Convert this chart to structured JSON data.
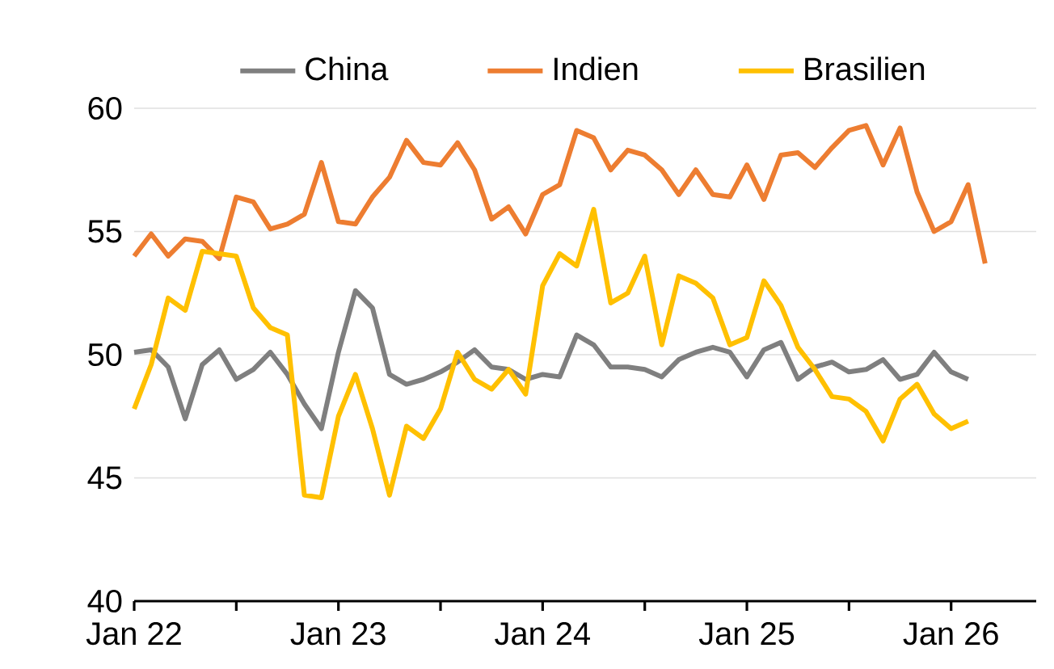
{
  "chart_data": {
    "type": "line",
    "x": [
      "2022-01",
      "2022-02",
      "2022-03",
      "2022-04",
      "2022-05",
      "2022-06",
      "2022-07",
      "2022-08",
      "2022-09",
      "2022-10",
      "2022-11",
      "2022-12",
      "2023-01",
      "2023-02",
      "2023-03",
      "2023-04",
      "2023-05",
      "2023-06",
      "2023-07",
      "2023-08",
      "2023-09",
      "2023-10",
      "2023-11",
      "2023-12",
      "2024-01",
      "2024-02",
      "2024-03",
      "2024-04",
      "2024-05",
      "2024-06",
      "2024-07",
      "2024-08",
      "2024-09",
      "2024-10",
      "2024-11",
      "2024-12",
      "2025-01",
      "2025-02",
      "2025-03",
      "2025-04",
      "2025-05",
      "2025-06",
      "2025-07",
      "2025-08",
      "2025-09",
      "2025-10",
      "2025-11",
      "2025-12",
      "2026-01",
      "2026-02",
      "2026-03"
    ],
    "series": [
      {
        "name": "China",
        "color": "#7f7f7f",
        "values": [
          50.1,
          50.2,
          49.5,
          47.4,
          49.6,
          50.2,
          49.0,
          49.4,
          50.1,
          49.2,
          48.0,
          47.0,
          50.1,
          52.6,
          51.9,
          49.2,
          48.8,
          49.0,
          49.3,
          49.7,
          50.2,
          49.5,
          49.4,
          49.0,
          49.2,
          49.1,
          50.8,
          50.4,
          49.5,
          49.5,
          49.4,
          49.1,
          49.8,
          50.1,
          50.3,
          50.1,
          49.1,
          50.2,
          50.5,
          49.0,
          49.5,
          49.7,
          49.3,
          49.4,
          49.8,
          49.0,
          49.2,
          50.1,
          49.3,
          49.0,
          null
        ]
      },
      {
        "name": "Indien",
        "color": "#ed7d31",
        "values": [
          54.0,
          54.9,
          54.0,
          54.7,
          54.6,
          53.9,
          56.4,
          56.2,
          55.1,
          55.3,
          55.7,
          57.8,
          55.4,
          55.3,
          56.4,
          57.2,
          58.7,
          57.8,
          57.7,
          58.6,
          57.5,
          55.5,
          56.0,
          54.9,
          56.5,
          56.9,
          59.1,
          58.8,
          57.5,
          58.3,
          58.1,
          57.5,
          56.5,
          57.5,
          56.5,
          56.4,
          57.7,
          56.3,
          58.1,
          58.2,
          57.6,
          58.4,
          59.1,
          59.3,
          57.7,
          59.2,
          56.6,
          55.0,
          55.4,
          56.9,
          53.7
        ]
      },
      {
        "name": "Brasilien",
        "color": "#ffc000",
        "values": [
          47.8,
          49.6,
          52.3,
          51.8,
          54.2,
          54.1,
          54.0,
          51.9,
          51.1,
          50.8,
          44.3,
          44.2,
          47.5,
          49.2,
          47.0,
          44.3,
          47.1,
          46.6,
          47.8,
          50.1,
          49.0,
          48.6,
          49.4,
          48.4,
          52.8,
          54.1,
          53.6,
          55.9,
          52.1,
          52.5,
          54.0,
          50.4,
          53.2,
          52.9,
          52.3,
          50.4,
          50.7,
          53.0,
          52.0,
          50.3,
          49.4,
          48.3,
          48.2,
          47.7,
          46.5,
          48.2,
          48.8,
          47.6,
          47.0,
          47.3,
          null
        ]
      }
    ],
    "xlim": [
      "2022-01",
      "2026-06"
    ],
    "xticks": [
      {
        "value": "2022-01",
        "label": "Jan 22"
      },
      {
        "value": "2022-07",
        "label": null
      },
      {
        "value": "2023-01",
        "label": "Jan 23"
      },
      {
        "value": "2023-07",
        "label": null
      },
      {
        "value": "2024-01",
        "label": "Jan 24"
      },
      {
        "value": "2024-07",
        "label": null
      },
      {
        "value": "2025-01",
        "label": "Jan 25"
      },
      {
        "value": "2025-07",
        "label": null
      },
      {
        "value": "2026-01",
        "label": "Jan 26"
      }
    ],
    "ylim": [
      40,
      60
    ],
    "yticks": [
      40,
      45,
      50,
      55,
      60
    ],
    "grid": "y",
    "legend": "top",
    "marker": "none",
    "line_style": "solid"
  }
}
